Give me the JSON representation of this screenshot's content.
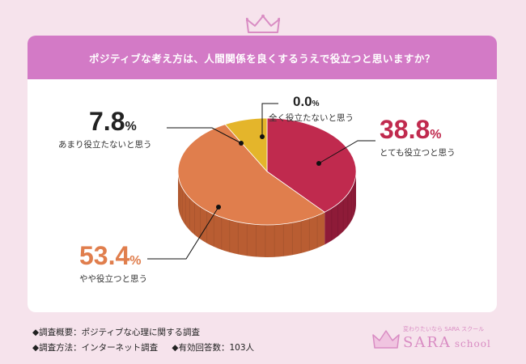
{
  "header": {
    "question": "ポジティブな考え方は、人間関係を良くするうえで役立つと思いますか？"
  },
  "chart_data": {
    "type": "pie",
    "title": "ポジティブな考え方は、人間関係を良くするうえで役立つと思いますか？",
    "unit": "%",
    "slices": [
      {
        "label": "とても役立つと思う",
        "value": 38.8,
        "value_text": "38.8",
        "color": "#c02a4e",
        "side_color": "#8e1b38"
      },
      {
        "label": "やや役立つと思う",
        "value": 53.4,
        "value_text": "53.4",
        "color": "#e07e4d",
        "side_color": "#b95d32"
      },
      {
        "label": "あまり役立たないと思う",
        "value": 7.8,
        "value_text": "7.8",
        "color": "#e4b52b",
        "side_color": "#b88b16"
      },
      {
        "label": "全く役立たないと思う",
        "value": 0.0,
        "value_text": "0.0",
        "color": "#888888",
        "side_color": "#666666"
      }
    ]
  },
  "footer": {
    "overview": "◆調査概要：ポジティブな心理に関する調査",
    "method": "◆調査方法：インターネット調査",
    "respondents": "◆有効回答数：103人"
  },
  "brand": {
    "tagline": "変わりたいなら SARA スクール",
    "name": "SARA",
    "suffix": "school",
    "color": "#d98cc3"
  }
}
